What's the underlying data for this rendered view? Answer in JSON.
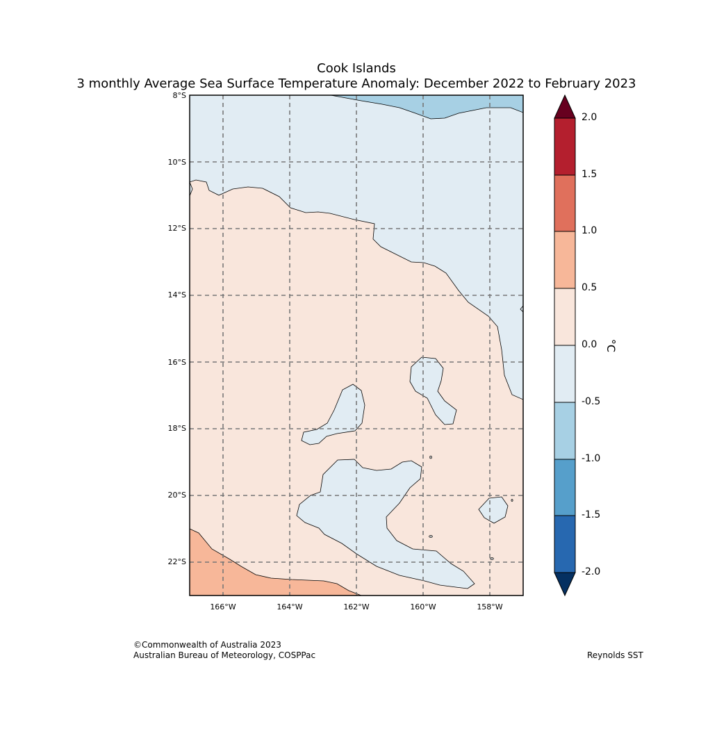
{
  "title": {
    "line1": "Cook Islands",
    "line2": "3 monthly Average Sea Surface Temperature Anomaly: December 2022 to February 2023"
  },
  "map": {
    "lat_labels": [
      "8°S",
      "10°S",
      "12°S",
      "14°S",
      "16°S",
      "18°S",
      "20°S",
      "22°S"
    ],
    "lon_labels": [
      "166°W",
      "164°W",
      "162°W",
      "160°W",
      "158°W"
    ],
    "colors": {
      "neg_0_05": "#e1ecf3",
      "neg_05_1": "#a7d0e4",
      "pos_0_05": "#f9e6dc",
      "pos_05_1": "#f7b799",
      "grid": "#777777"
    }
  },
  "colorbar": {
    "unit": "°C",
    "tick_labels": [
      "2.0",
      "1.5",
      "1.0",
      "0.5",
      "0.0",
      "-0.5",
      "-1.0",
      "-1.5",
      "-2.0"
    ],
    "colors": [
      "#053061",
      "#2768b0",
      "#569fcb",
      "#a7d0e4",
      "#e1ecf3",
      "#f9e6dc",
      "#f7b799",
      "#e0705c",
      "#b41f2e",
      "#67001f"
    ]
  },
  "footer": {
    "copyright": "©Commonwealth of Australia 2023",
    "agency": "Australian Bureau of Meteorology, COSPPac",
    "source": "Reynolds SST"
  }
}
